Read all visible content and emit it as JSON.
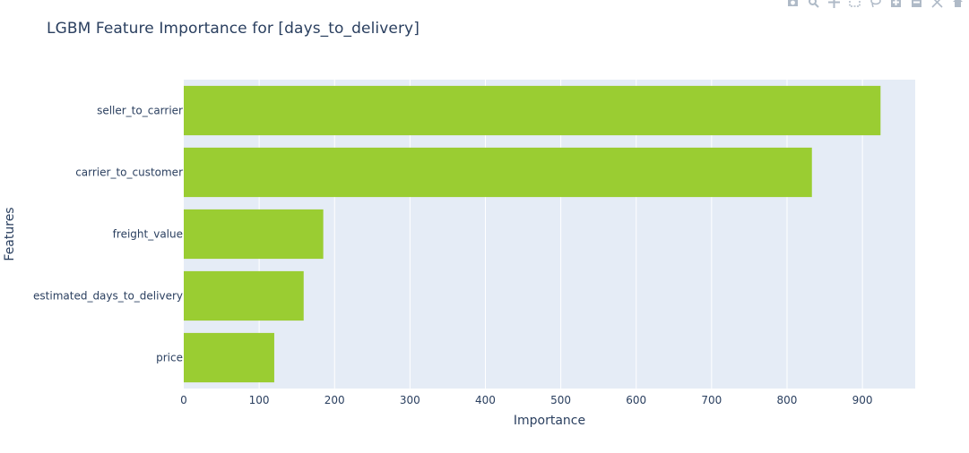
{
  "chart_title": "LGBM Feature Importance for [days_to_delivery]",
  "modebar": {
    "buttons": [
      "camera-icon",
      "zoom-icon",
      "pan-icon",
      "box-select-icon",
      "lasso-icon",
      "zoom-in-icon",
      "zoom-out-icon",
      "autoscale-icon",
      "reset-axes-icon"
    ]
  },
  "colors": {
    "bar": "#9acd32",
    "plot_background": "#e5ecf6",
    "gridline": "#ffffff",
    "text": "#2a3f5f"
  },
  "chart_data": {
    "type": "bar",
    "orientation": "horizontal",
    "title": "LGBM Feature Importance for [days_to_delivery]",
    "xlabel": "Importance",
    "ylabel": "Features",
    "categories": [
      "seller_to_carrier",
      "carrier_to_customer",
      "freight_value",
      "estimated_days_to_delivery",
      "price"
    ],
    "values": [
      924,
      833,
      185,
      159,
      120
    ],
    "xlim": [
      0,
      970
    ],
    "xticks": [
      0,
      100,
      200,
      300,
      400,
      500,
      600,
      700,
      800,
      900
    ],
    "grid": true,
    "legend": "none"
  }
}
